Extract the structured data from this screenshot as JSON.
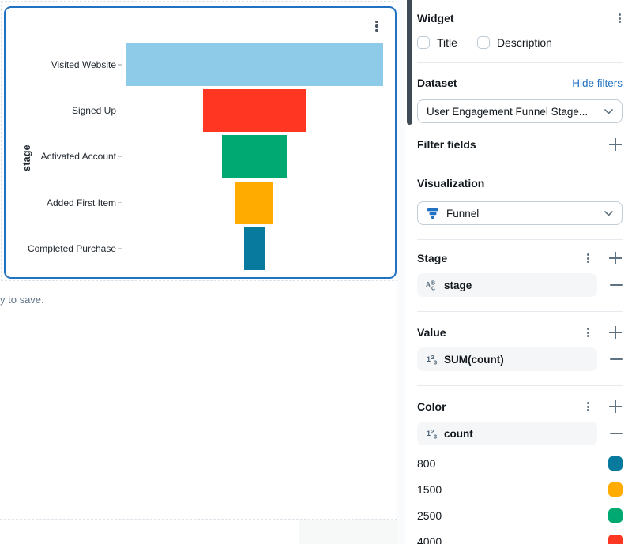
{
  "canvas": {
    "unsaved_text": "y to save."
  },
  "chart_data": {
    "type": "funnel",
    "orientation": "horizontal",
    "title": "",
    "ylabel": "stage",
    "categories": [
      "Visited Website",
      "Signed Up",
      "Activated Account",
      "Added First Item",
      "Completed Purchase"
    ],
    "values": [
      10000,
      4000,
      2500,
      1500,
      800
    ],
    "colors": [
      "#8DCBE8",
      "#FF3621",
      "#00A972",
      "#FFAB00",
      "#077A9D"
    ],
    "legend_position": "none",
    "grid": false
  },
  "panel": {
    "widget_section": {
      "label": "Widget",
      "checkboxes": [
        {
          "label": "Title",
          "checked": false
        },
        {
          "label": "Description",
          "checked": false
        }
      ]
    },
    "dataset_section": {
      "label": "Dataset",
      "link": "Hide filters",
      "selected": "User Engagement Funnel Stage..."
    },
    "filter_fields": {
      "label": "Filter fields"
    },
    "visualization": {
      "label": "Visualization",
      "selected": "Funnel"
    },
    "sections": [
      {
        "label": "Stage",
        "chip": "stage",
        "field_type": "string"
      },
      {
        "label": "Value",
        "chip": "SUM(count)",
        "field_type": "number"
      },
      {
        "label": "Color",
        "chip": "count",
        "field_type": "number"
      }
    ],
    "color_legend": [
      {
        "value": "800",
        "color": "#077A9D"
      },
      {
        "value": "1500",
        "color": "#FFAB00"
      },
      {
        "value": "2500",
        "color": "#00A972"
      },
      {
        "value": "4000",
        "color": "#FF3621"
      }
    ],
    "accent_color": "#2272C3"
  }
}
